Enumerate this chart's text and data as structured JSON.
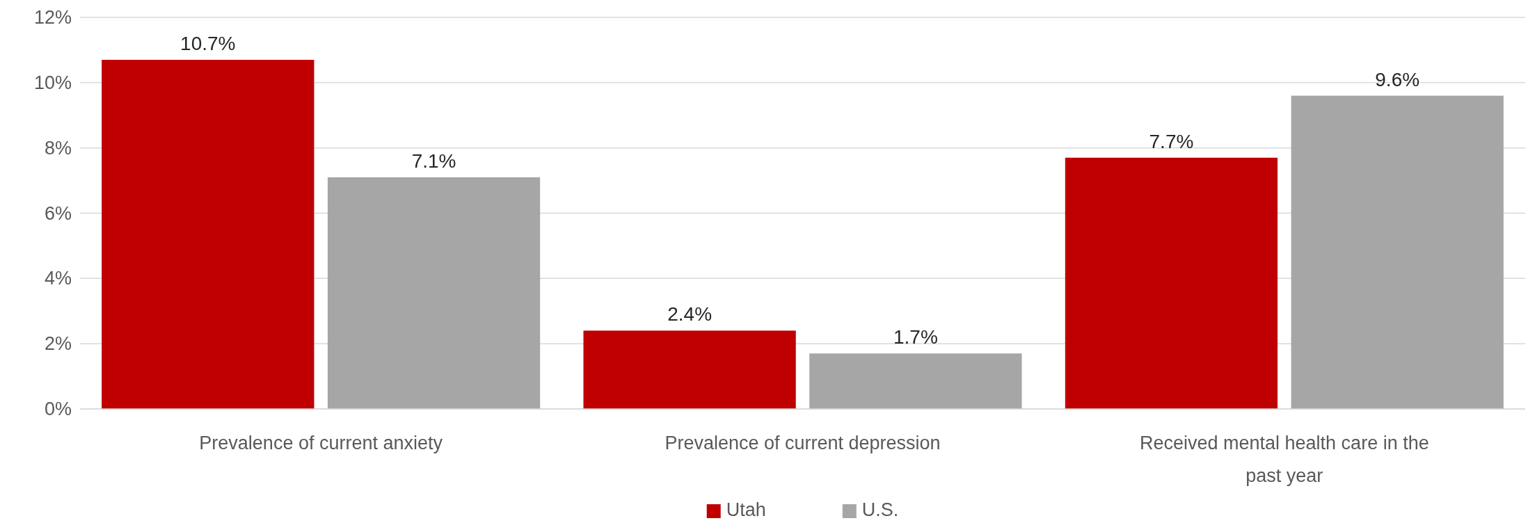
{
  "chart_data": {
    "type": "bar",
    "categories": [
      "Prevalence of current anxiety",
      "Prevalence of current depression",
      "Received mental health care in the past year"
    ],
    "series": [
      {
        "name": "Utah",
        "color": "#c00000",
        "values": [
          10.7,
          2.4,
          7.7
        ]
      },
      {
        "name": "U.S.",
        "color": "#a6a6a6",
        "values": [
          7.1,
          1.7,
          9.6
        ]
      }
    ],
    "ylim": [
      0,
      12
    ],
    "yticks": [
      {
        "value": 0,
        "label": "0%"
      },
      {
        "value": 2,
        "label": "2%"
      },
      {
        "value": 4,
        "label": "4%"
      },
      {
        "value": 6,
        "label": "6%"
      },
      {
        "value": 8,
        "label": "8%"
      },
      {
        "value": 10,
        "label": "10%"
      },
      {
        "value": 12,
        "label": "12%"
      }
    ],
    "grid": "y",
    "legend": "bottom",
    "value_labels": [
      [
        "10.7%",
        "2.4%",
        "7.7%"
      ],
      [
        "7.1%",
        "1.7%",
        "9.6%"
      ]
    ]
  }
}
